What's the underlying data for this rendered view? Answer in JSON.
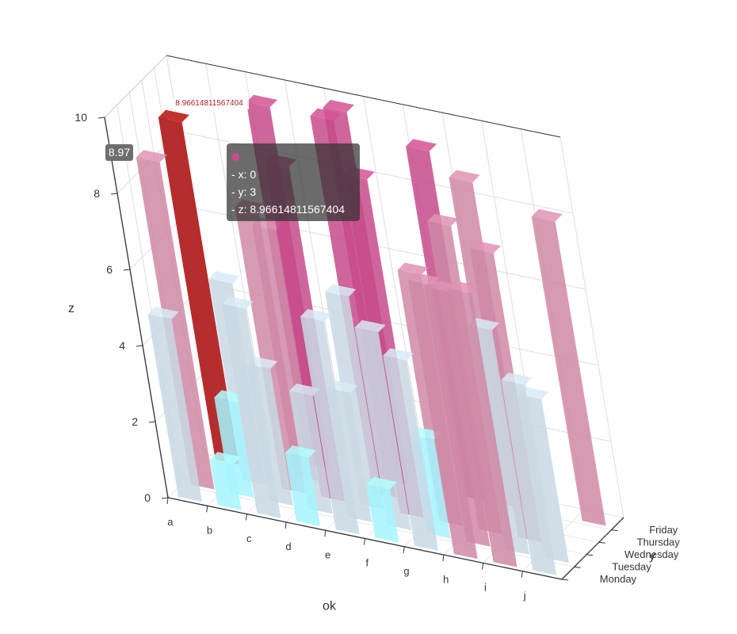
{
  "chart_data": {
    "type": "bar3d",
    "xlabel": "ok",
    "ylabel": "y",
    "zlabel": "z",
    "x_categories": [
      "a",
      "b",
      "c",
      "d",
      "e",
      "f",
      "g",
      "h",
      "i",
      "j"
    ],
    "y_categories": [
      "Monday",
      "Tuesday",
      "Wednesday",
      "Thursday",
      "Friday"
    ],
    "z_ticks": [
      "0",
      "2",
      "4",
      "6",
      "8",
      "10"
    ],
    "zlim": [
      0,
      10
    ],
    "visual_map_colors": [
      "#a5f5ff",
      "#c9d9e4",
      "#cf89a6",
      "#c74c8a"
    ],
    "highlight_color": "#b22222",
    "bars": [
      {
        "x": "a",
        "y": "Monday",
        "z": 4.8
      },
      {
        "x": "a",
        "y": "Tuesday",
        "z": 8.6
      },
      {
        "x": "a",
        "y": "Thursday",
        "z": 9.0
      },
      {
        "x": "b",
        "y": "Monday",
        "z": 1.2
      },
      {
        "x": "b",
        "y": "Tuesday",
        "z": 2.5
      },
      {
        "x": "b",
        "y": "Wednesday",
        "z": 5.3
      },
      {
        "x": "c",
        "y": "Monday",
        "z": 5.5
      },
      {
        "x": "c",
        "y": "Tuesday",
        "z": 3.6
      },
      {
        "x": "c",
        "y": "Wednesday",
        "z": 7.4
      },
      {
        "x": "c",
        "y": "Thursday",
        "z": 6.6
      },
      {
        "x": "c",
        "y": "Friday",
        "z": 9.5
      },
      {
        "x": "d",
        "y": "Monday",
        "z": 1.8
      },
      {
        "x": "d",
        "y": "Tuesday",
        "z": 3.1
      },
      {
        "x": "d",
        "y": "Wednesday",
        "z": 8.8
      },
      {
        "x": "e",
        "y": "Monday",
        "z": 5.6
      },
      {
        "x": "e",
        "y": "Tuesday",
        "z": 3.4
      },
      {
        "x": "e",
        "y": "Wednesday",
        "z": 5.6
      },
      {
        "x": "e",
        "y": "Thursday",
        "z": 9.9
      },
      {
        "x": "e",
        "y": "Friday",
        "z": 9.8
      },
      {
        "x": "f",
        "y": "Monday",
        "z": 1.4
      },
      {
        "x": "f",
        "y": "Tuesday",
        "z": 5.2
      },
      {
        "x": "f",
        "y": "Wednesday",
        "z": 8.9
      },
      {
        "x": "g",
        "y": "Monday",
        "z": 5.0
      },
      {
        "x": "g",
        "y": "Tuesday",
        "z": 2.6
      },
      {
        "x": "g",
        "y": "Wednesday",
        "z": 6.6
      },
      {
        "x": "g",
        "y": "Friday",
        "z": 9.2
      },
      {
        "x": "h",
        "y": "Monday",
        "z": 7.2
      },
      {
        "x": "h",
        "y": "Tuesday",
        "z": 6.7
      },
      {
        "x": "h",
        "y": "Wednesday",
        "z": 8.1
      },
      {
        "x": "h",
        "y": "Friday",
        "z": 8.6
      },
      {
        "x": "i",
        "y": "Monday",
        "z": 7.2
      },
      {
        "x": "i",
        "y": "Tuesday",
        "z": 5.9
      },
      {
        "x": "i",
        "y": "Wednesday",
        "z": 7.6
      },
      {
        "x": "j",
        "y": "Monday",
        "z": 5.0
      },
      {
        "x": "j",
        "y": "Tuesday",
        "z": 4.3
      },
      {
        "x": "j",
        "y": "Friday",
        "z": 8.0
      }
    ],
    "highlighted": {
      "x": 0,
      "y": 3,
      "z": 8.96614811567404
    }
  },
  "tooltip": {
    "x_line": "- x: 0",
    "y_line": "- y: 3",
    "z_line": "- z: 8.96614811567404",
    "marker_color": "#c74c8a"
  },
  "axis_pointer_label": "8.97",
  "bar_label": "8.96614811567404"
}
